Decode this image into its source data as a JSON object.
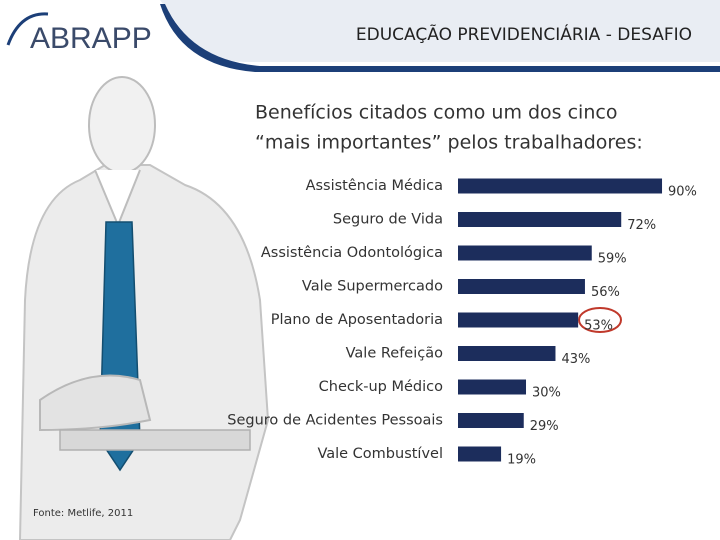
{
  "header": {
    "logo": "ABRAPP",
    "title": "EDUCAÇÃO PREVIDENCIÁRIA - DESAFIO"
  },
  "source": "Fonte: Metlife, 2011",
  "chart_data": {
    "type": "bar",
    "title": [
      "Benefícios citados como um dos cinco",
      "“mais importantes” pelos trabalhadores:"
    ],
    "categories": [
      "Assistência Médica",
      "Seguro de Vida",
      "Assistência Odontológica",
      "Vale Supermercado",
      "Plano de Aposentadoria",
      "Vale Refeição",
      "Check-up Médico",
      "Seguro de Acidentes Pessoais",
      "Vale Combustível"
    ],
    "values": [
      90,
      72,
      59,
      56,
      53,
      43,
      30,
      29,
      19
    ],
    "value_labels": [
      "90%",
      "72%",
      "59%",
      "56%",
      "53%",
      "43%",
      "30%",
      "29%",
      "19%"
    ],
    "color": "#1c2d5c"
  }
}
